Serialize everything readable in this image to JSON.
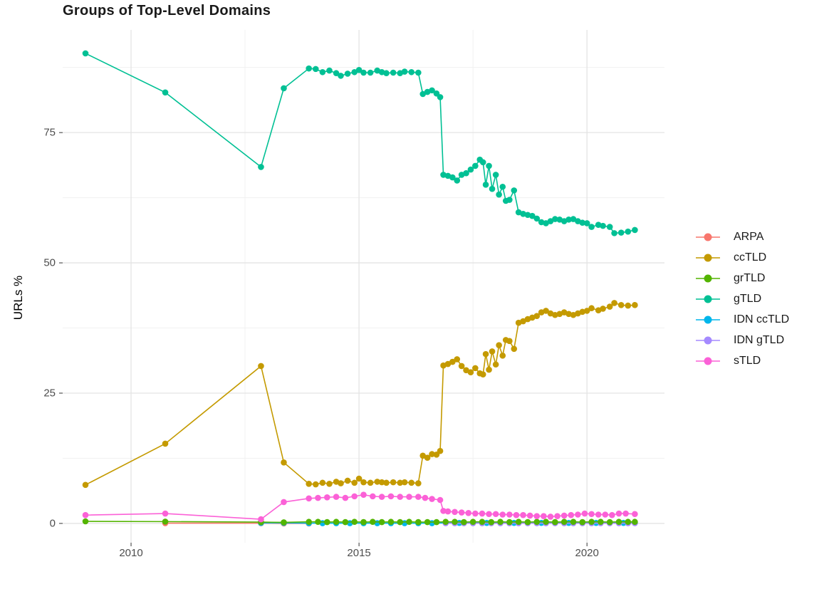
{
  "title": "Groups of Top-Level Domains",
  "axes": {
    "y_label": "URLs %",
    "x_tick_labels": [
      "2010",
      "2015",
      "2020"
    ],
    "y_tick_labels": [
      "0",
      "25",
      "50",
      "75"
    ]
  },
  "legend": {
    "items": [
      {
        "label": "ARPA",
        "color": "#F8766D"
      },
      {
        "label": "ccTLD",
        "color": "#C49A00"
      },
      {
        "label": "grTLD",
        "color": "#53B400"
      },
      {
        "label": "gTLD",
        "color": "#00C094"
      },
      {
        "label": "IDN ccTLD",
        "color": "#00B6EB"
      },
      {
        "label": "IDN gTLD",
        "color": "#A58AFF"
      },
      {
        "label": "sTLD",
        "color": "#FB61D7"
      }
    ]
  },
  "chart_data": {
    "type": "line",
    "title": "Groups of Top-Level Domains",
    "xlabel": "",
    "ylabel": "URLs %",
    "xlim": [
      2008.5,
      2021.7
    ],
    "ylim": [
      -3.7,
      94.7
    ],
    "x_major_ticks": [
      2010,
      2015,
      2020
    ],
    "x_minor_ticks": [
      2012.5,
      2017.5
    ],
    "y_major_ticks": [
      0,
      25,
      50,
      75
    ],
    "y_minor_ticks": [
      12.5,
      37.5,
      62.5,
      87.5
    ],
    "grid": true,
    "legend_position": "right",
    "draw_order": [
      "ARPA",
      "IDN ccTLD",
      "IDN gTLD",
      "ccTLD",
      "grTLD",
      "gTLD",
      "sTLD"
    ],
    "series": [
      {
        "name": "ARPA",
        "color": "#F8766D",
        "points": [
          [
            2010.75,
            0.05
          ],
          [
            2012.85,
            0.05
          ],
          [
            2013.35,
            0.0
          ],
          [
            2013.9,
            0.0
          ]
        ]
      },
      {
        "name": "ccTLD",
        "color": "#C49A00",
        "points": [
          [
            2009.0,
            7.4
          ],
          [
            2010.75,
            15.3
          ],
          [
            2012.85,
            30.2
          ],
          [
            2013.35,
            11.7
          ],
          [
            2013.9,
            7.6
          ],
          [
            2014.05,
            7.5
          ],
          [
            2014.2,
            7.8
          ],
          [
            2014.35,
            7.6
          ],
          [
            2014.5,
            8.0
          ],
          [
            2014.6,
            7.7
          ],
          [
            2014.75,
            8.2
          ],
          [
            2014.9,
            7.8
          ],
          [
            2015.0,
            8.6
          ],
          [
            2015.1,
            7.9
          ],
          [
            2015.25,
            7.8
          ],
          [
            2015.4,
            8.0
          ],
          [
            2015.5,
            7.9
          ],
          [
            2015.6,
            7.8
          ],
          [
            2015.75,
            7.9
          ],
          [
            2015.9,
            7.8
          ],
          [
            2016.0,
            7.9
          ],
          [
            2016.15,
            7.8
          ],
          [
            2016.3,
            7.7
          ],
          [
            2016.4,
            13.0
          ],
          [
            2016.5,
            12.6
          ],
          [
            2016.6,
            13.3
          ],
          [
            2016.7,
            13.2
          ],
          [
            2016.78,
            13.9
          ],
          [
            2016.85,
            30.3
          ],
          [
            2016.95,
            30.6
          ],
          [
            2017.05,
            31.0
          ],
          [
            2017.15,
            31.5
          ],
          [
            2017.25,
            30.2
          ],
          [
            2017.35,
            29.4
          ],
          [
            2017.45,
            29.0
          ],
          [
            2017.55,
            29.8
          ],
          [
            2017.65,
            28.8
          ],
          [
            2017.72,
            28.6
          ],
          [
            2017.78,
            32.5
          ],
          [
            2017.85,
            29.5
          ],
          [
            2017.92,
            33.0
          ],
          [
            2018.0,
            30.5
          ],
          [
            2018.07,
            34.2
          ],
          [
            2018.15,
            32.2
          ],
          [
            2018.22,
            35.2
          ],
          [
            2018.3,
            35.0
          ],
          [
            2018.4,
            33.5
          ],
          [
            2018.5,
            38.5
          ],
          [
            2018.6,
            38.8
          ],
          [
            2018.7,
            39.2
          ],
          [
            2018.8,
            39.5
          ],
          [
            2018.9,
            39.8
          ],
          [
            2019.0,
            40.5
          ],
          [
            2019.1,
            40.8
          ],
          [
            2019.2,
            40.3
          ],
          [
            2019.3,
            40.0
          ],
          [
            2019.4,
            40.2
          ],
          [
            2019.5,
            40.5
          ],
          [
            2019.6,
            40.2
          ],
          [
            2019.7,
            40.0
          ],
          [
            2019.8,
            40.3
          ],
          [
            2019.9,
            40.6
          ],
          [
            2020.0,
            40.8
          ],
          [
            2020.1,
            41.3
          ],
          [
            2020.25,
            40.9
          ],
          [
            2020.35,
            41.2
          ],
          [
            2020.5,
            41.6
          ],
          [
            2020.6,
            42.3
          ],
          [
            2020.75,
            41.9
          ],
          [
            2020.9,
            41.8
          ],
          [
            2021.05,
            41.9
          ]
        ]
      },
      {
        "name": "grTLD",
        "color": "#53B400",
        "points": [
          [
            2009.0,
            0.4
          ],
          [
            2010.75,
            0.35
          ],
          [
            2012.85,
            0.25
          ],
          [
            2013.35,
            0.2
          ],
          [
            2013.9,
            0.3
          ],
          [
            2014.1,
            0.3
          ],
          [
            2014.3,
            0.25
          ],
          [
            2014.5,
            0.3
          ],
          [
            2014.7,
            0.25
          ],
          [
            2014.9,
            0.3
          ],
          [
            2015.1,
            0.25
          ],
          [
            2015.3,
            0.3
          ],
          [
            2015.5,
            0.25
          ],
          [
            2015.7,
            0.3
          ],
          [
            2015.9,
            0.25
          ],
          [
            2016.1,
            0.3
          ],
          [
            2016.3,
            0.25
          ],
          [
            2016.5,
            0.25
          ],
          [
            2016.7,
            0.25
          ],
          [
            2016.9,
            0.3
          ],
          [
            2017.1,
            0.3
          ],
          [
            2017.3,
            0.25
          ],
          [
            2017.5,
            0.3
          ],
          [
            2017.7,
            0.3
          ],
          [
            2017.9,
            0.25
          ],
          [
            2018.1,
            0.3
          ],
          [
            2018.3,
            0.25
          ],
          [
            2018.5,
            0.3
          ],
          [
            2018.7,
            0.25
          ],
          [
            2018.9,
            0.3
          ],
          [
            2019.1,
            0.3
          ],
          [
            2019.3,
            0.25
          ],
          [
            2019.5,
            0.3
          ],
          [
            2019.7,
            0.3
          ],
          [
            2019.9,
            0.25
          ],
          [
            2020.1,
            0.3
          ],
          [
            2020.3,
            0.3
          ],
          [
            2020.5,
            0.25
          ],
          [
            2020.7,
            0.3
          ],
          [
            2020.9,
            0.3
          ],
          [
            2021.05,
            0.3
          ]
        ]
      },
      {
        "name": "gTLD",
        "color": "#00C094",
        "points": [
          [
            2009.0,
            90.2
          ],
          [
            2010.75,
            82.7
          ],
          [
            2012.85,
            68.4
          ],
          [
            2013.35,
            83.5
          ],
          [
            2013.9,
            87.3
          ],
          [
            2014.05,
            87.2
          ],
          [
            2014.2,
            86.6
          ],
          [
            2014.35,
            86.9
          ],
          [
            2014.5,
            86.4
          ],
          [
            2014.6,
            85.9
          ],
          [
            2014.75,
            86.3
          ],
          [
            2014.9,
            86.6
          ],
          [
            2015.0,
            87.0
          ],
          [
            2015.1,
            86.5
          ],
          [
            2015.25,
            86.5
          ],
          [
            2015.4,
            86.9
          ],
          [
            2015.5,
            86.6
          ],
          [
            2015.6,
            86.4
          ],
          [
            2015.75,
            86.5
          ],
          [
            2015.9,
            86.4
          ],
          [
            2016.0,
            86.7
          ],
          [
            2016.15,
            86.6
          ],
          [
            2016.3,
            86.5
          ],
          [
            2016.4,
            82.4
          ],
          [
            2016.5,
            82.8
          ],
          [
            2016.6,
            83.1
          ],
          [
            2016.7,
            82.5
          ],
          [
            2016.78,
            81.8
          ],
          [
            2016.85,
            66.9
          ],
          [
            2016.95,
            66.7
          ],
          [
            2017.05,
            66.4
          ],
          [
            2017.15,
            65.8
          ],
          [
            2017.25,
            66.9
          ],
          [
            2017.35,
            67.2
          ],
          [
            2017.45,
            67.9
          ],
          [
            2017.55,
            68.6
          ],
          [
            2017.65,
            69.8
          ],
          [
            2017.72,
            69.3
          ],
          [
            2017.78,
            65.0
          ],
          [
            2017.85,
            68.6
          ],
          [
            2017.92,
            64.2
          ],
          [
            2018.0,
            66.9
          ],
          [
            2018.07,
            63.1
          ],
          [
            2018.15,
            64.6
          ],
          [
            2018.22,
            61.9
          ],
          [
            2018.3,
            62.1
          ],
          [
            2018.4,
            63.9
          ],
          [
            2018.5,
            59.7
          ],
          [
            2018.6,
            59.4
          ],
          [
            2018.7,
            59.2
          ],
          [
            2018.8,
            59.0
          ],
          [
            2018.9,
            58.5
          ],
          [
            2019.0,
            57.8
          ],
          [
            2019.1,
            57.6
          ],
          [
            2019.2,
            58.0
          ],
          [
            2019.3,
            58.4
          ],
          [
            2019.4,
            58.3
          ],
          [
            2019.5,
            58.0
          ],
          [
            2019.6,
            58.3
          ],
          [
            2019.7,
            58.4
          ],
          [
            2019.8,
            58.0
          ],
          [
            2019.9,
            57.7
          ],
          [
            2020.0,
            57.6
          ],
          [
            2020.1,
            56.9
          ],
          [
            2020.25,
            57.3
          ],
          [
            2020.35,
            57.1
          ],
          [
            2020.5,
            56.9
          ],
          [
            2020.6,
            55.7
          ],
          [
            2020.75,
            55.8
          ],
          [
            2020.9,
            56.0
          ],
          [
            2021.05,
            56.3
          ]
        ]
      },
      {
        "name": "IDN ccTLD",
        "color": "#00B6EB",
        "points": [
          [
            2012.85,
            0.1
          ],
          [
            2013.35,
            0.1
          ],
          [
            2013.9,
            0.05
          ],
          [
            2014.2,
            0.05
          ],
          [
            2014.5,
            0.05
          ],
          [
            2014.8,
            0.05
          ],
          [
            2015.1,
            0.05
          ],
          [
            2015.4,
            0.05
          ],
          [
            2015.7,
            0.05
          ],
          [
            2016.0,
            0.05
          ],
          [
            2016.3,
            0.05
          ],
          [
            2016.6,
            0.05
          ],
          [
            2016.9,
            0.1
          ],
          [
            2017.2,
            0.1
          ],
          [
            2017.5,
            0.1
          ],
          [
            2017.8,
            0.1
          ],
          [
            2018.1,
            0.1
          ],
          [
            2018.4,
            0.1
          ],
          [
            2018.7,
            0.1
          ],
          [
            2019.0,
            0.1
          ],
          [
            2019.3,
            0.1
          ],
          [
            2019.6,
            0.1
          ],
          [
            2019.9,
            0.1
          ],
          [
            2020.2,
            0.1
          ],
          [
            2020.5,
            0.1
          ],
          [
            2020.8,
            0.1
          ],
          [
            2021.05,
            0.1
          ]
        ]
      },
      {
        "name": "IDN gTLD",
        "color": "#A58AFF",
        "points": [
          [
            2016.9,
            0.05
          ],
          [
            2017.1,
            0.05
          ],
          [
            2017.3,
            0.05
          ],
          [
            2017.5,
            0.05
          ],
          [
            2017.7,
            0.05
          ],
          [
            2017.9,
            0.05
          ],
          [
            2018.1,
            0.05
          ],
          [
            2018.3,
            0.05
          ],
          [
            2018.5,
            0.05
          ],
          [
            2018.7,
            0.05
          ],
          [
            2018.9,
            0.05
          ],
          [
            2019.1,
            0.05
          ],
          [
            2019.3,
            0.05
          ],
          [
            2019.5,
            0.05
          ],
          [
            2019.7,
            0.05
          ],
          [
            2019.9,
            0.05
          ],
          [
            2020.1,
            0.05
          ],
          [
            2020.3,
            0.05
          ],
          [
            2020.5,
            0.05
          ],
          [
            2020.7,
            0.05
          ],
          [
            2020.9,
            0.05
          ],
          [
            2021.05,
            0.05
          ]
        ]
      },
      {
        "name": "sTLD",
        "color": "#FB61D7",
        "points": [
          [
            2009.0,
            1.6
          ],
          [
            2010.75,
            1.9
          ],
          [
            2012.85,
            0.8
          ],
          [
            2013.35,
            4.1
          ],
          [
            2013.9,
            4.8
          ],
          [
            2014.1,
            4.9
          ],
          [
            2014.3,
            5.0
          ],
          [
            2014.5,
            5.1
          ],
          [
            2014.7,
            4.9
          ],
          [
            2014.9,
            5.2
          ],
          [
            2015.1,
            5.5
          ],
          [
            2015.3,
            5.2
          ],
          [
            2015.5,
            5.1
          ],
          [
            2015.7,
            5.2
          ],
          [
            2015.9,
            5.1
          ],
          [
            2016.1,
            5.1
          ],
          [
            2016.3,
            5.1
          ],
          [
            2016.45,
            4.9
          ],
          [
            2016.6,
            4.7
          ],
          [
            2016.78,
            4.5
          ],
          [
            2016.85,
            2.4
          ],
          [
            2016.95,
            2.3
          ],
          [
            2017.1,
            2.2
          ],
          [
            2017.25,
            2.1
          ],
          [
            2017.4,
            2.0
          ],
          [
            2017.55,
            1.9
          ],
          [
            2017.7,
            1.9
          ],
          [
            2017.85,
            1.8
          ],
          [
            2018.0,
            1.8
          ],
          [
            2018.15,
            1.7
          ],
          [
            2018.3,
            1.7
          ],
          [
            2018.45,
            1.6
          ],
          [
            2018.6,
            1.6
          ],
          [
            2018.75,
            1.5
          ],
          [
            2018.9,
            1.4
          ],
          [
            2019.05,
            1.4
          ],
          [
            2019.2,
            1.3
          ],
          [
            2019.35,
            1.4
          ],
          [
            2019.5,
            1.5
          ],
          [
            2019.65,
            1.6
          ],
          [
            2019.8,
            1.7
          ],
          [
            2019.95,
            1.9
          ],
          [
            2020.1,
            1.8
          ],
          [
            2020.25,
            1.7
          ],
          [
            2020.4,
            1.7
          ],
          [
            2020.55,
            1.6
          ],
          [
            2020.7,
            1.9
          ],
          [
            2020.85,
            1.9
          ],
          [
            2021.05,
            1.8
          ]
        ]
      }
    ]
  }
}
